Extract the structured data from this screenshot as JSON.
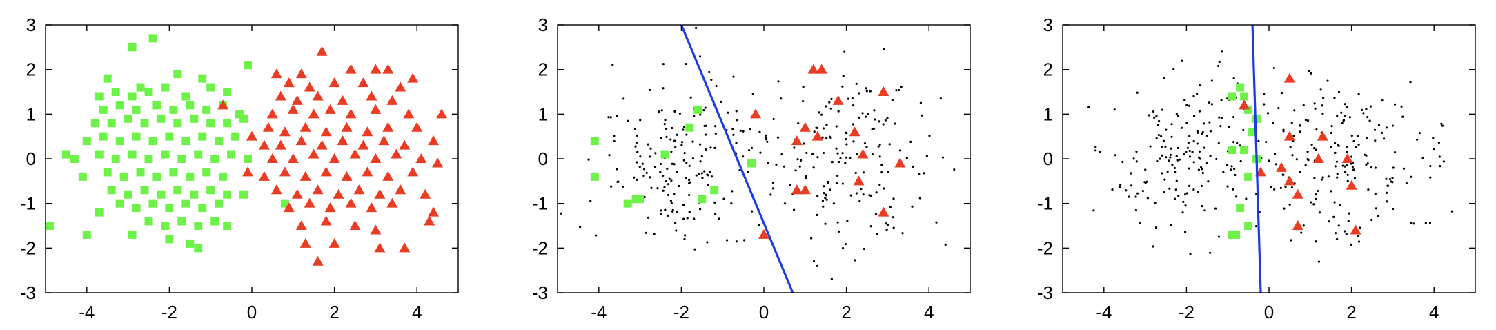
{
  "chart_data": [
    {
      "type": "scatter",
      "xlim": [
        -5,
        5
      ],
      "ylim": [
        -3,
        3
      ],
      "xticks": [
        -4,
        -2,
        0,
        2,
        4
      ],
      "yticks": [
        -3,
        -2,
        -1,
        0,
        1,
        2,
        3
      ],
      "grid": false,
      "series": [
        {
          "marker": "square",
          "color": "#6ef24a",
          "points": [
            [
              -2.9,
              2.5
            ],
            [
              -2.4,
              2.7
            ],
            [
              -0.1,
              2.1
            ],
            [
              -3.5,
              1.8
            ],
            [
              -2.7,
              1.6
            ],
            [
              -1.8,
              1.9
            ],
            [
              -1.2,
              1.8
            ],
            [
              -1.0,
              1.6
            ],
            [
              -3.7,
              1.4
            ],
            [
              -3.3,
              1.5
            ],
            [
              -2.9,
              1.4
            ],
            [
              -2.5,
              1.5
            ],
            [
              -2.1,
              1.6
            ],
            [
              -1.6,
              1.4
            ],
            [
              -0.6,
              1.5
            ],
            [
              -3.6,
              1.1
            ],
            [
              -3.2,
              1.2
            ],
            [
              -2.8,
              1.1
            ],
            [
              -2.3,
              1.2
            ],
            [
              -1.9,
              1.1
            ],
            [
              -1.5,
              1.2
            ],
            [
              -1.1,
              1.1
            ],
            [
              -0.7,
              1.2
            ],
            [
              -0.3,
              1.0
            ],
            [
              -3.8,
              0.8
            ],
            [
              -3.4,
              0.8
            ],
            [
              -3.0,
              0.9
            ],
            [
              -2.6,
              0.8
            ],
            [
              -2.2,
              0.9
            ],
            [
              -1.8,
              0.8
            ],
            [
              -1.4,
              0.9
            ],
            [
              -1.0,
              0.8
            ],
            [
              -0.6,
              0.8
            ],
            [
              -0.2,
              0.9
            ],
            [
              -4.0,
              0.4
            ],
            [
              -3.6,
              0.5
            ],
            [
              -3.2,
              0.4
            ],
            [
              -2.8,
              0.5
            ],
            [
              -2.4,
              0.4
            ],
            [
              -2.0,
              0.5
            ],
            [
              -1.6,
              0.4
            ],
            [
              -1.2,
              0.5
            ],
            [
              -0.8,
              0.4
            ],
            [
              -0.4,
              0.5
            ],
            [
              -4.5,
              0.1
            ],
            [
              -4.3,
              0.0
            ],
            [
              -3.7,
              0.1
            ],
            [
              -3.3,
              0.0
            ],
            [
              -2.9,
              0.1
            ],
            [
              -2.5,
              0.0
            ],
            [
              -2.1,
              0.1
            ],
            [
              -1.7,
              0.0
            ],
            [
              -1.3,
              0.1
            ],
            [
              -0.9,
              0.0
            ],
            [
              -0.5,
              0.1
            ],
            [
              -0.1,
              0.0
            ],
            [
              -4.1,
              -0.4
            ],
            [
              -3.5,
              -0.3
            ],
            [
              -3.1,
              -0.4
            ],
            [
              -2.7,
              -0.3
            ],
            [
              -2.3,
              -0.4
            ],
            [
              -1.9,
              -0.3
            ],
            [
              -1.5,
              -0.4
            ],
            [
              -1.1,
              -0.3
            ],
            [
              -0.7,
              -0.4
            ],
            [
              -3.4,
              -0.7
            ],
            [
              -3.0,
              -0.8
            ],
            [
              -2.6,
              -0.7
            ],
            [
              -2.2,
              -0.8
            ],
            [
              -1.8,
              -0.7
            ],
            [
              -1.4,
              -0.8
            ],
            [
              -1.0,
              -0.7
            ],
            [
              -0.6,
              -0.8
            ],
            [
              -0.2,
              -0.8
            ],
            [
              -3.7,
              -1.2
            ],
            [
              -3.2,
              -1.0
            ],
            [
              -2.8,
              -1.1
            ],
            [
              -2.4,
              -1.0
            ],
            [
              -2.0,
              -1.1
            ],
            [
              -1.6,
              -1.0
            ],
            [
              -1.2,
              -1.1
            ],
            [
              -0.8,
              -1.0
            ],
            [
              -2.5,
              -1.4
            ],
            [
              -2.1,
              -1.5
            ],
            [
              -1.7,
              -1.4
            ],
            [
              -1.3,
              -1.5
            ],
            [
              -0.9,
              -1.4
            ],
            [
              -4.0,
              -1.7
            ],
            [
              -2.0,
              -1.8
            ],
            [
              -1.5,
              -1.9
            ],
            [
              -1.3,
              -2.0
            ],
            [
              -4.9,
              -1.5
            ],
            [
              0.8,
              -1.0
            ],
            [
              -0.6,
              -1.5
            ],
            [
              -2.9,
              -1.7
            ]
          ]
        },
        {
          "marker": "triangle",
          "color": "#ea3b23",
          "points": [
            [
              1.7,
              2.4
            ],
            [
              0.6,
              1.9
            ],
            [
              1.2,
              1.9
            ],
            [
              2.4,
              2.0
            ],
            [
              3.0,
              2.0
            ],
            [
              3.3,
              2.0
            ],
            [
              3.9,
              1.8
            ],
            [
              0.9,
              1.7
            ],
            [
              1.4,
              1.6
            ],
            [
              2.0,
              1.7
            ],
            [
              2.7,
              1.7
            ],
            [
              3.6,
              1.6
            ],
            [
              0.7,
              1.4
            ],
            [
              1.1,
              1.3
            ],
            [
              1.6,
              1.4
            ],
            [
              2.2,
              1.3
            ],
            [
              2.9,
              1.4
            ],
            [
              3.4,
              1.3
            ],
            [
              0.5,
              1.0
            ],
            [
              1.0,
              1.1
            ],
            [
              1.5,
              1.0
            ],
            [
              1.9,
              1.1
            ],
            [
              2.4,
              1.0
            ],
            [
              3.0,
              1.1
            ],
            [
              3.8,
              1.0
            ],
            [
              4.6,
              1.0
            ],
            [
              0.4,
              0.7
            ],
            [
              0.8,
              0.6
            ],
            [
              1.3,
              0.7
            ],
            [
              1.8,
              0.6
            ],
            [
              2.3,
              0.7
            ],
            [
              2.8,
              0.6
            ],
            [
              3.3,
              0.7
            ],
            [
              4.0,
              0.7
            ],
            [
              0.3,
              0.3
            ],
            [
              0.7,
              0.3
            ],
            [
              1.2,
              0.4
            ],
            [
              1.7,
              0.3
            ],
            [
              2.2,
              0.4
            ],
            [
              2.7,
              0.3
            ],
            [
              3.2,
              0.4
            ],
            [
              3.7,
              0.3
            ],
            [
              4.4,
              0.4
            ],
            [
              0.5,
              0.0
            ],
            [
              1.0,
              0.0
            ],
            [
              1.5,
              0.1
            ],
            [
              2.0,
              0.0
            ],
            [
              2.5,
              0.1
            ],
            [
              3.0,
              0.0
            ],
            [
              3.5,
              0.1
            ],
            [
              4.1,
              0.0
            ],
            [
              4.5,
              -0.1
            ],
            [
              0.3,
              -0.4
            ],
            [
              0.8,
              -0.3
            ],
            [
              1.3,
              -0.4
            ],
            [
              1.8,
              -0.3
            ],
            [
              2.3,
              -0.4
            ],
            [
              2.8,
              -0.3
            ],
            [
              3.3,
              -0.4
            ],
            [
              3.9,
              -0.3
            ],
            [
              0.6,
              -0.7
            ],
            [
              1.1,
              -0.8
            ],
            [
              1.6,
              -0.7
            ],
            [
              2.1,
              -0.8
            ],
            [
              2.6,
              -0.7
            ],
            [
              3.1,
              -0.8
            ],
            [
              3.6,
              -0.7
            ],
            [
              4.2,
              -0.8
            ],
            [
              0.9,
              -1.1
            ],
            [
              1.4,
              -1.0
            ],
            [
              1.9,
              -1.1
            ],
            [
              2.4,
              -1.0
            ],
            [
              2.9,
              -1.1
            ],
            [
              3.4,
              -1.0
            ],
            [
              4.4,
              -1.2
            ],
            [
              4.3,
              -1.4
            ],
            [
              1.2,
              -1.5
            ],
            [
              1.8,
              -1.4
            ],
            [
              2.5,
              -1.5
            ],
            [
              3.0,
              -1.6
            ],
            [
              1.3,
              -1.9
            ],
            [
              2.0,
              -1.9
            ],
            [
              3.1,
              -2.0
            ],
            [
              3.7,
              -2.0
            ],
            [
              1.6,
              -2.3
            ],
            [
              0.0,
              0.5
            ],
            [
              -0.7,
              1.2
            ],
            [
              -0.1,
              -0.3
            ]
          ]
        }
      ]
    },
    {
      "type": "scatter",
      "xlim": [
        -5,
        5
      ],
      "ylim": [
        -3,
        3
      ],
      "xticks": [
        -4,
        -2,
        0,
        2,
        4
      ],
      "yticks": [
        -3,
        -2,
        -1,
        0,
        1,
        2,
        3
      ],
      "grid": false,
      "series": [
        {
          "marker": "dot",
          "color": "#000000",
          "points": "unlabeled-cloud"
        },
        {
          "marker": "square",
          "color": "#6ef24a",
          "points": [
            [
              -4.1,
              0.4
            ],
            [
              -4.1,
              -0.4
            ],
            [
              -3.1,
              -0.9
            ],
            [
              -3.0,
              -0.9
            ],
            [
              -3.3,
              -1.0
            ],
            [
              -1.6,
              1.1
            ],
            [
              -1.8,
              0.7
            ],
            [
              -2.4,
              0.1
            ],
            [
              -1.2,
              -0.7
            ],
            [
              -1.5,
              -0.9
            ],
            [
              -0.3,
              -0.1
            ]
          ]
        },
        {
          "marker": "triangle",
          "color": "#ea3b23",
          "points": [
            [
              1.2,
              2.0
            ],
            [
              1.4,
              2.0
            ],
            [
              -0.2,
              1.0
            ],
            [
              1.8,
              1.3
            ],
            [
              2.9,
              1.5
            ],
            [
              1.0,
              0.7
            ],
            [
              0.8,
              0.4
            ],
            [
              1.3,
              0.5
            ],
            [
              2.2,
              0.6
            ],
            [
              2.4,
              0.1
            ],
            [
              3.3,
              -0.1
            ],
            [
              2.3,
              -0.5
            ],
            [
              0.8,
              -0.7
            ],
            [
              1.0,
              -0.7
            ],
            [
              2.9,
              -1.2
            ],
            [
              0.0,
              -1.7
            ]
          ]
        }
      ],
      "line": {
        "color": "#1a3be6",
        "from": [
          -2.0,
          3.0
        ],
        "to": [
          0.7,
          -3.0
        ]
      }
    },
    {
      "type": "scatter",
      "xlim": [
        -5,
        5
      ],
      "ylim": [
        -3,
        3
      ],
      "xticks": [
        -4,
        -2,
        0,
        2,
        4
      ],
      "yticks": [
        -3,
        -2,
        -1,
        0,
        1,
        2,
        3
      ],
      "grid": false,
      "series": [
        {
          "marker": "dot",
          "color": "#000000",
          "points": "unlabeled-cloud"
        },
        {
          "marker": "square",
          "color": "#6ef24a",
          "points": [
            [
              -0.7,
              1.6
            ],
            [
              -0.6,
              1.4
            ],
            [
              -0.9,
              1.4
            ],
            [
              -0.5,
              1.1
            ],
            [
              -0.4,
              0.6
            ],
            [
              -0.3,
              0.9
            ],
            [
              -0.9,
              0.2
            ],
            [
              -0.6,
              0.2
            ],
            [
              -0.3,
              0.0
            ],
            [
              -0.5,
              -0.4
            ],
            [
              -0.7,
              -1.1
            ],
            [
              -0.5,
              -1.5
            ],
            [
              -0.8,
              -1.7
            ],
            [
              -0.9,
              -1.7
            ]
          ]
        },
        {
          "marker": "triangle",
          "color": "#ea3b23",
          "points": [
            [
              0.5,
              1.8
            ],
            [
              -0.6,
              1.2
            ],
            [
              1.3,
              0.5
            ],
            [
              0.5,
              0.5
            ],
            [
              0.3,
              -0.2
            ],
            [
              1.2,
              0.0
            ],
            [
              1.9,
              0.0
            ],
            [
              0.5,
              -0.5
            ],
            [
              0.7,
              -0.8
            ],
            [
              -0.2,
              -0.3
            ],
            [
              2.0,
              -0.6
            ],
            [
              0.7,
              -1.5
            ],
            [
              2.1,
              -1.6
            ]
          ]
        }
      ],
      "line": {
        "color": "#1a3be6",
        "from": [
          -0.4,
          3.0
        ],
        "to": [
          -0.2,
          -3.0
        ]
      }
    }
  ]
}
